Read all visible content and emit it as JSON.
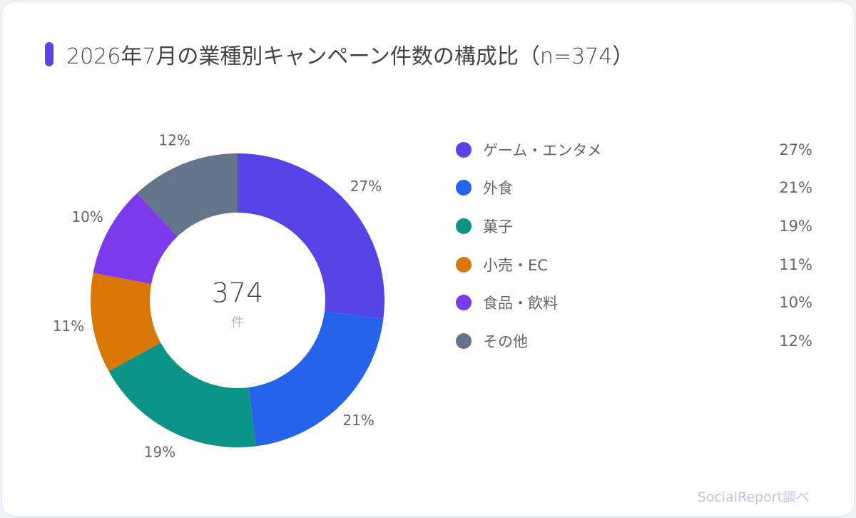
{
  "title": "2026年7月の業種別キャンペーン件数の構成比（n=374）",
  "accent_color": "#5a45e6",
  "center": {
    "value": "374",
    "unit": "件"
  },
  "source": "SocialReport調べ",
  "chart_data": {
    "type": "pie",
    "subtype": "donut",
    "title": "2026年7月の業種別キャンペーン件数の構成比（n=374）",
    "total": 374,
    "categories": [
      "ゲーム・エンタメ",
      "外食",
      "菓子",
      "小売・EC",
      "食品・飲料",
      "その他"
    ],
    "values": [
      27,
      21,
      19,
      11,
      10,
      12
    ],
    "labels": [
      "27%",
      "21%",
      "19%",
      "11%",
      "10%",
      "12%"
    ],
    "colors": [
      "#5544e6",
      "#2563eb",
      "#0d9488",
      "#d97706",
      "#7c3aed",
      "#64748b"
    ],
    "legend_position": "right"
  }
}
